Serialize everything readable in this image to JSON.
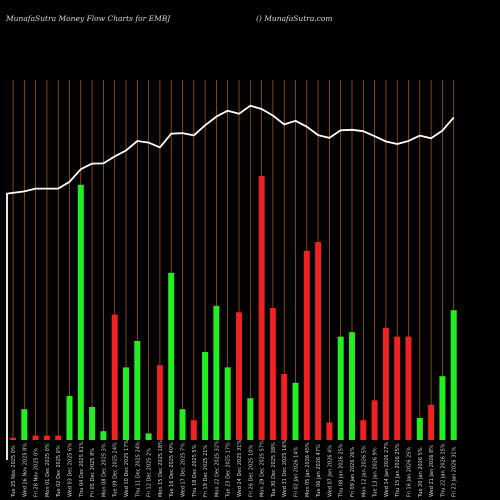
{
  "header": {
    "title": "MunafaSutra  Money Flow  Charts for EMBJ",
    "site": "() MunafaSutra.com"
  },
  "colors": {
    "background": "#000000",
    "grid_line": "#b5651d",
    "up_bar": "#22ee22",
    "down_bar": "#ee2222",
    "line": "#ffffff",
    "text": "#d8d8d8"
  },
  "chart_data": {
    "type": "bar",
    "title": "MunafaSutra  Money Flow  Charts for EMBJ",
    "grid": true,
    "categories": [
      "Tue 25 Nov 2025 0%",
      "Wed 26 Nov 2025 8%",
      "Fri 28 Nov 2025 0%",
      "Mon 01 Dec 2025 0%",
      "Tue 02 Dec 2025 0%",
      "Wed 03 Dec 2025 6%",
      "Thu 04 Dec 2025 61%",
      "Fri 05 Dec 2025 8%",
      "Mon 08 Dec 2025 3%",
      "Tue 09 Dec 2025 24%",
      "Wed 10 Dec 2025 17%",
      "Thu 11 Dec 2025 24%",
      "Fri 12 Dec 2025 2%",
      "Mon 15 Dec 2025 18%",
      "Tue 16 Dec 2025 40%",
      "Wed 17 Dec 2025 7%",
      "Thu 18 Dec 2025 5%",
      "Fri 19 Dec 2025 21%",
      "Mon 22 Dec 2025 32%",
      "Tue 23 Dec 2025 17%",
      "Wed 24 Dec 2025 31%",
      "Fri 26 Dec 2025 10%",
      "Mon 29 Dec 2025 57%",
      "Tue 30 Dec 2025 38%",
      "Wed 31 Dec 2025 16%",
      "Fri 02 Jan 2026 14%",
      "Mon 05 Jan 2026 45%",
      "Tue 06 Jan 2026 47%",
      "Wed 07 Jan 2026 4%",
      "Thu 08 Jan 2026 25%",
      "Fri 09 Jan 2026 26%",
      "Mon 12 Jan 2026 5%",
      "Tue 13 Jan 2026 9%",
      "Wed 14 Jan 2026 27%",
      "Thu 15 Jan 2026 25%",
      "Fri 16 Jan 2026 25%",
      "Tue 20 Jan 2026 5%",
      "Wed 21 Jan 2026 8%",
      "Thu 22 Jan 2026 15%",
      "Fri 23 Jan 2026 31%"
    ],
    "series": [
      {
        "kind": "money-flow bars",
        "values": [
          1,
          14,
          2,
          2,
          2,
          20,
          116,
          15,
          4,
          57,
          33,
          45,
          3,
          34,
          76,
          14,
          9,
          40,
          61,
          33,
          58,
          19,
          120,
          60,
          30,
          26,
          86,
          90,
          8,
          47,
          49,
          9,
          18,
          51,
          47,
          47,
          10,
          16,
          29,
          59
        ],
        "directions": [
          "down",
          "up",
          "down",
          "down",
          "down",
          "up",
          "up",
          "up",
          "up",
          "down",
          "up",
          "up",
          "up",
          "down",
          "up",
          "up",
          "down",
          "up",
          "up",
          "up",
          "down",
          "up",
          "down",
          "down",
          "down",
          "up",
          "down",
          "down",
          "down",
          "up",
          "up",
          "down",
          "down",
          "down",
          "down",
          "down",
          "up",
          "down",
          "up",
          "up"
        ]
      },
      {
        "kind": "price line",
        "values": [
          88,
          88.8,
          89.8,
          89.8,
          89.8,
          92.2,
          96.7,
          98.7,
          98.8,
          101.3,
          103.4,
          106.8,
          106.2,
          104.5,
          109.4,
          109.6,
          108.8,
          112.4,
          115.5,
          117.6,
          116.5,
          119.4,
          118.2,
          115.9,
          112.7,
          114,
          111.9,
          108.9,
          107.9,
          110.6,
          110.8,
          110.3,
          108.5,
          106.6,
          105.7,
          106.8,
          108.7,
          107.8,
          110.5,
          115.2
        ]
      }
    ]
  }
}
